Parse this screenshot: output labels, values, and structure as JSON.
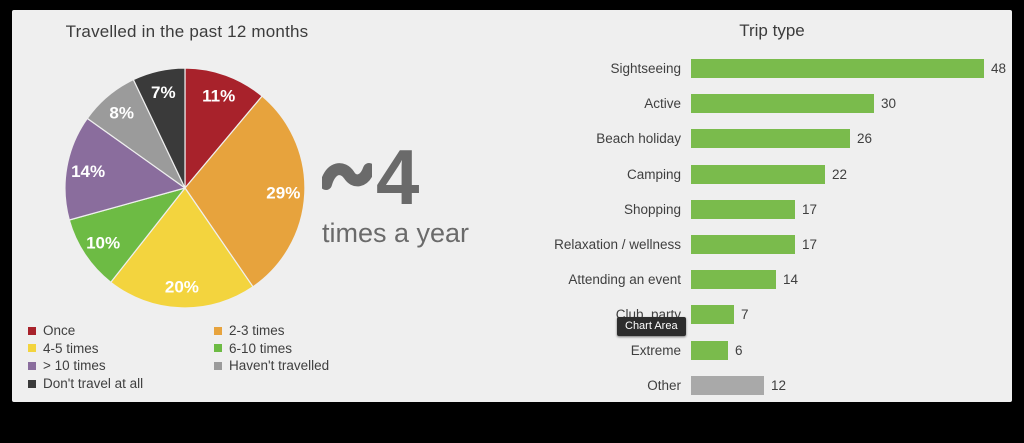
{
  "tooltip": {
    "label": "Chart Area"
  },
  "chart_data": [
    {
      "type": "pie",
      "title": "Travelled in the past 12 months",
      "labels": [
        "Once",
        "2-3 times",
        "4-5 times",
        "6-10 times",
        "> 10 times",
        "Haven't travelled",
        "Don't travel at all"
      ],
      "values": [
        11,
        29,
        20,
        10,
        14,
        8,
        7
      ],
      "display_labels": [
        "11%",
        "29%",
        "20%",
        "10%",
        "14%",
        "8%",
        "7%"
      ],
      "colors": [
        "#a8222b",
        "#e7a33d",
        "#f3d43e",
        "#6dbb44",
        "#8a6d9d",
        "#9b9b9b",
        "#3a3a3a"
      ],
      "start_angle_deg": 0,
      "direction": "clockwise",
      "label_text_color": "#ffffff",
      "legend_position": "bottom",
      "legend_columns": 2,
      "annotation": {
        "prefix": "~",
        "number": "4",
        "caption": "times a year"
      }
    },
    {
      "type": "bar",
      "orientation": "horizontal",
      "title": "Trip type",
      "categories": [
        "Sightseeing",
        "Active",
        "Beach holiday",
        "Camping",
        "Shopping",
        "Relaxation / wellness",
        "Attending an event",
        "Club, party",
        "Extreme",
        "Other"
      ],
      "values": [
        48,
        30,
        26,
        22,
        17,
        17,
        14,
        7,
        6,
        12
      ],
      "bar_color": "#7abb4c",
      "colors_override": {
        "Other": "#a9a9a9"
      },
      "value_labels_shown": true,
      "xlim": [
        0,
        48
      ],
      "grid": false,
      "legend_position": "none"
    }
  ]
}
